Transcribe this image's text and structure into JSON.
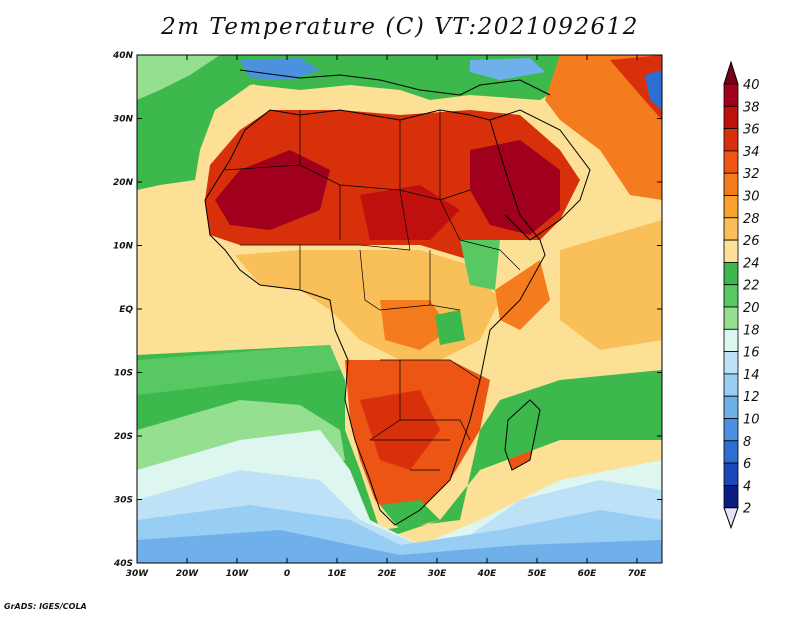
{
  "title": "2m Temperature (C) VT:2021092612",
  "credit": "GrADS: IGES/COLA",
  "map": {
    "x_ticks": [
      "30W",
      "20W",
      "10W",
      "0",
      "10E",
      "20E",
      "30E",
      "40E",
      "50E",
      "60E",
      "70E"
    ],
    "y_ticks": [
      "40N",
      "30N",
      "20N",
      "10N",
      "EQ",
      "10S",
      "20S",
      "30S",
      "40S"
    ]
  },
  "colorbar": {
    "labels": [
      "40",
      "38",
      "36",
      "34",
      "32",
      "30",
      "28",
      "26",
      "24",
      "22",
      "20",
      "18",
      "16",
      "14",
      "12",
      "10",
      "8",
      "6",
      "4",
      "2"
    ],
    "colors": {
      "40": "#a0001c",
      "38": "#c0100e",
      "36": "#d8300a",
      "34": "#ec5514",
      "32": "#f57c1e",
      "30": "#f8a030",
      "28": "#f9c05a",
      "26": "#fbe095",
      "24": "#3cb84c",
      "22": "#58c862",
      "20": "#94e090",
      "18": "#ddf6f0",
      "16": "#bde2f8",
      "14": "#98cdf4",
      "12": "#6fb0eb",
      "10": "#4c90e0",
      "8": "#2e6ed2",
      "6": "#1a46b8",
      "4": "#0a1e82",
      "2": "#e6e0f6"
    },
    "top_arrow_color": "#780018",
    "bottom_arrow_color": "#e6e0f6"
  }
}
